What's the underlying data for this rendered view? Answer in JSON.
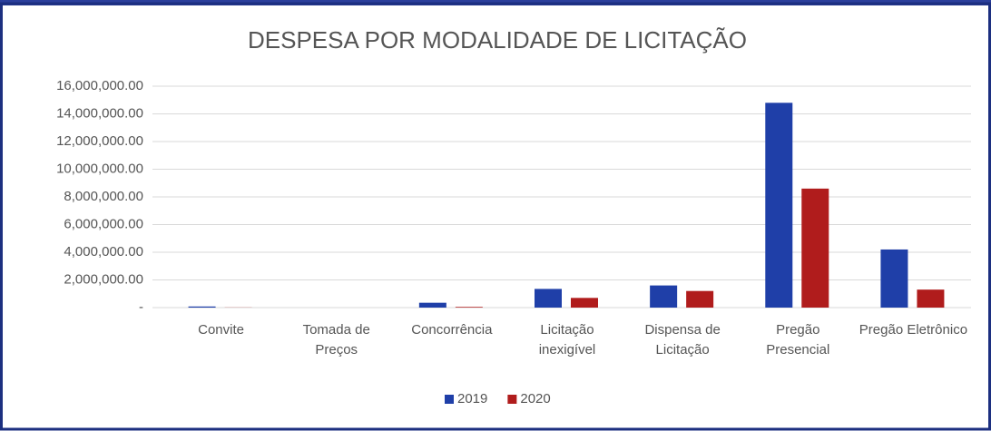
{
  "chart_data": {
    "type": "bar",
    "title": "DESPESA POR MODALIDADE DE LICITAÇÃO",
    "categories": [
      "Convite",
      "Tomada de Preços",
      "Concorrência",
      "Licitação inexigível",
      "Dispensa de Licitação",
      "Pregão Presencial",
      "Pregão Eletrônico"
    ],
    "series": [
      {
        "name": "2019",
        "color": "#1f3fa8",
        "values": [
          80000,
          0,
          350000,
          1350000,
          1600000,
          14800000,
          4200000
        ]
      },
      {
        "name": "2020",
        "color": "#b01c1c",
        "values": [
          10000,
          0,
          50000,
          700000,
          1200000,
          8600000,
          1300000
        ]
      }
    ],
    "ylim": [
      0,
      16000000
    ],
    "yticks": [
      {
        "value": 0,
        "label": "-"
      },
      {
        "value": 2000000,
        "label": "2,000,000.00"
      },
      {
        "value": 4000000,
        "label": "4,000,000.00"
      },
      {
        "value": 6000000,
        "label": "6,000,000.00"
      },
      {
        "value": 8000000,
        "label": "8,000,000.00"
      },
      {
        "value": 10000000,
        "label": "10,000,000.00"
      },
      {
        "value": 12000000,
        "label": "12,000,000.00"
      },
      {
        "value": 14000000,
        "label": "14,000,000.00"
      },
      {
        "value": 16000000,
        "label": "16,000,000.00"
      }
    ],
    "grid": true,
    "legend": "bottom"
  }
}
